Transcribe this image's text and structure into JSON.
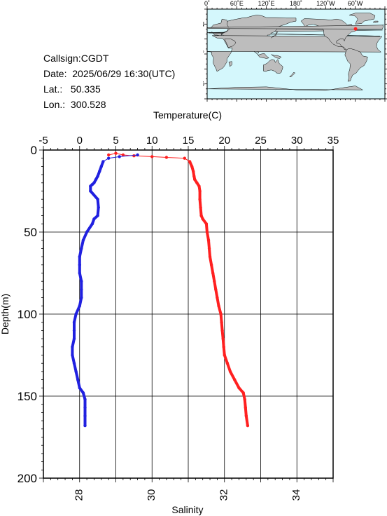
{
  "station": {
    "callsign_label": "Callsign:",
    "callsign": "CGDT",
    "date_label": "Date:",
    "date": "2025/06/29 16:30(UTC)",
    "lat_label": "Lat.:",
    "lat": "50.335",
    "lon_label": "Lon.:",
    "lon": "300.528"
  },
  "map": {
    "lon_labels": [
      "0˚",
      "60˚E",
      "120˚E",
      "180˚",
      "120˚W",
      "60˚W"
    ],
    "lat_labels": [
      "60˚N",
      "0˚",
      "60˚S"
    ],
    "ocean_color": "#d4f7fc",
    "land_color": "#bdbdbd",
    "marker_color": "#ff2020",
    "marker": {
      "lat": 50.335,
      "lon": 300.528
    }
  },
  "chart_data": {
    "type": "line",
    "grid": true,
    "ylabel": "Depth(m)",
    "ylim": [
      200,
      0
    ],
    "yticks": [
      0,
      50,
      100,
      150,
      200
    ],
    "top_axis": {
      "label": "Temperature(C)",
      "range": [
        -5,
        35
      ],
      "ticks": [
        -5,
        0,
        5,
        10,
        15,
        20,
        25,
        30,
        35
      ]
    },
    "bottom_axis": {
      "label": "Salinity",
      "range": [
        27,
        35
      ],
      "ticks": [
        28,
        30,
        32,
        34
      ]
    },
    "series": [
      {
        "axis": "temperature",
        "color": "#ff2020",
        "points": [
          [
            4.0,
            3
          ],
          [
            5.0,
            2
          ],
          [
            6.0,
            3
          ],
          [
            7.5,
            3.5
          ],
          [
            10.0,
            4
          ],
          [
            12.0,
            4.5
          ],
          [
            14.5,
            5
          ],
          [
            15.2,
            7
          ],
          [
            15.5,
            10
          ],
          [
            15.7,
            13
          ],
          [
            15.8,
            16
          ],
          [
            15.9,
            18
          ],
          [
            16.2,
            20
          ],
          [
            16.5,
            22
          ],
          [
            16.6,
            25
          ],
          [
            16.6,
            30
          ],
          [
            16.7,
            35
          ],
          [
            16.8,
            40
          ],
          [
            17.0,
            42
          ],
          [
            17.5,
            45
          ],
          [
            17.6,
            50
          ],
          [
            17.8,
            55
          ],
          [
            17.9,
            60
          ],
          [
            18.0,
            65
          ],
          [
            18.2,
            70
          ],
          [
            18.4,
            75
          ],
          [
            18.6,
            80
          ],
          [
            18.8,
            85
          ],
          [
            19.0,
            90
          ],
          [
            19.2,
            95
          ],
          [
            19.5,
            100
          ],
          [
            19.6,
            105
          ],
          [
            19.7,
            110
          ],
          [
            19.8,
            115
          ],
          [
            19.9,
            120
          ],
          [
            20.0,
            125
          ],
          [
            20.4,
            130
          ],
          [
            20.8,
            135
          ],
          [
            21.4,
            140
          ],
          [
            22.0,
            145
          ],
          [
            22.6,
            148
          ],
          [
            22.8,
            152
          ],
          [
            22.9,
            157
          ],
          [
            23.0,
            162
          ],
          [
            23.2,
            168
          ]
        ]
      },
      {
        "axis": "salinity",
        "color": "#2020e0",
        "points": [
          [
            29.6,
            3
          ],
          [
            29.1,
            4
          ],
          [
            28.8,
            5
          ],
          [
            28.65,
            7
          ],
          [
            28.6,
            10
          ],
          [
            28.55,
            13
          ],
          [
            28.5,
            16
          ],
          [
            28.45,
            18
          ],
          [
            28.4,
            20
          ],
          [
            28.35,
            21
          ],
          [
            28.3,
            22
          ],
          [
            28.3,
            25
          ],
          [
            28.5,
            30
          ],
          [
            28.52,
            35
          ],
          [
            28.5,
            40
          ],
          [
            28.4,
            42
          ],
          [
            28.35,
            45
          ],
          [
            28.2,
            50
          ],
          [
            28.1,
            55
          ],
          [
            28.05,
            60
          ],
          [
            28.0,
            65
          ],
          [
            28.0,
            70
          ],
          [
            28.0,
            75
          ],
          [
            28.05,
            80
          ],
          [
            28.05,
            85
          ],
          [
            28.05,
            90
          ],
          [
            28.0,
            95
          ],
          [
            27.9,
            100
          ],
          [
            27.85,
            105
          ],
          [
            27.85,
            110
          ],
          [
            27.85,
            115
          ],
          [
            27.8,
            120
          ],
          [
            27.8,
            125
          ],
          [
            27.85,
            130
          ],
          [
            27.9,
            135
          ],
          [
            27.95,
            140
          ],
          [
            28.0,
            145
          ],
          [
            28.1,
            148
          ],
          [
            28.15,
            152
          ],
          [
            28.15,
            157
          ],
          [
            28.15,
            162
          ],
          [
            28.15,
            168
          ]
        ]
      }
    ]
  }
}
